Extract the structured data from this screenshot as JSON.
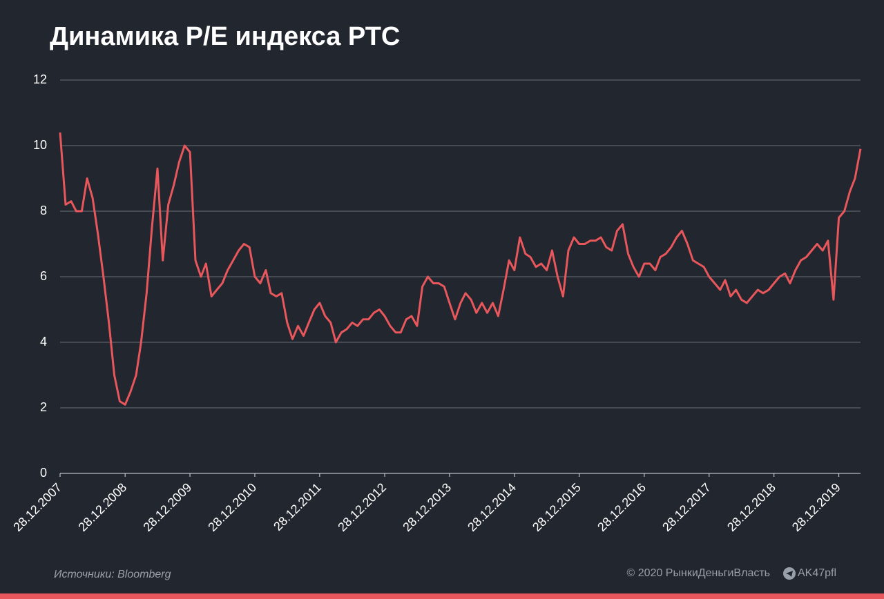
{
  "chart_data": {
    "type": "line",
    "title": "Динамика P/E  индекса РТС",
    "source": "Источники: Bloomberg",
    "copyright": "© 2020  РынкиДеньгиВласть",
    "channel": "AK47pfl",
    "color": "#e8575c",
    "grid": true,
    "ylim": [
      0,
      12
    ],
    "yticks": [
      0,
      2,
      4,
      6,
      8,
      10,
      12
    ],
    "xlim": [
      "28.12.2007",
      "28.04.2020"
    ],
    "xticks": [
      "28.12.2007",
      "28.12.2008",
      "28.12.2009",
      "28.12.2010",
      "28.12.2011",
      "28.12.2012",
      "28.12.2013",
      "28.12.2014",
      "28.12.2015",
      "28.12.2016",
      "28.12.2017",
      "28.12.2018",
      "28.12.2019"
    ],
    "x": [
      "28.12.2007",
      "28.01.2008",
      "28.02.2008",
      "28.03.2008",
      "28.04.2008",
      "28.05.2008",
      "28.06.2008",
      "28.07.2008",
      "28.08.2008",
      "28.09.2008",
      "28.10.2008",
      "28.11.2008",
      "28.12.2008",
      "28.01.2009",
      "28.02.2009",
      "28.03.2009",
      "28.04.2009",
      "28.05.2009",
      "28.06.2009",
      "28.07.2009",
      "28.08.2009",
      "28.09.2009",
      "28.10.2009",
      "28.11.2009",
      "28.12.2009",
      "28.01.2010",
      "28.02.2010",
      "28.03.2010",
      "28.04.2010",
      "28.05.2010",
      "28.06.2010",
      "28.07.2010",
      "28.08.2010",
      "28.09.2010",
      "28.10.2010",
      "28.11.2010",
      "28.12.2010",
      "28.01.2011",
      "28.02.2011",
      "28.03.2011",
      "28.04.2011",
      "28.05.2011",
      "28.06.2011",
      "28.07.2011",
      "28.08.2011",
      "28.09.2011",
      "28.10.2011",
      "28.11.2011",
      "28.12.2011",
      "28.01.2012",
      "28.02.2012",
      "28.03.2012",
      "28.04.2012",
      "28.05.2012",
      "28.06.2012",
      "28.07.2012",
      "28.08.2012",
      "28.09.2012",
      "28.10.2012",
      "28.11.2012",
      "28.12.2012",
      "28.01.2013",
      "28.02.2013",
      "28.03.2013",
      "28.04.2013",
      "28.05.2013",
      "28.06.2013",
      "28.07.2013",
      "28.08.2013",
      "28.09.2013",
      "28.10.2013",
      "28.11.2013",
      "28.12.2013",
      "28.01.2014",
      "28.02.2014",
      "28.03.2014",
      "28.04.2014",
      "28.05.2014",
      "28.06.2014",
      "28.07.2014",
      "28.08.2014",
      "28.09.2014",
      "28.10.2014",
      "28.11.2014",
      "28.12.2014",
      "28.01.2015",
      "28.02.2015",
      "28.03.2015",
      "28.04.2015",
      "28.05.2015",
      "28.06.2015",
      "28.07.2015",
      "28.08.2015",
      "28.09.2015",
      "28.10.2015",
      "28.11.2015",
      "28.12.2015",
      "28.01.2016",
      "28.02.2016",
      "28.03.2016",
      "28.04.2016",
      "28.05.2016",
      "28.06.2016",
      "28.07.2016",
      "28.08.2016",
      "28.09.2016",
      "28.10.2016",
      "28.11.2016",
      "28.12.2016",
      "28.01.2017",
      "28.02.2017",
      "28.03.2017",
      "28.04.2017",
      "28.05.2017",
      "28.06.2017",
      "28.07.2017",
      "28.08.2017",
      "28.09.2017",
      "28.10.2017",
      "28.11.2017",
      "28.12.2017",
      "28.01.2018",
      "28.02.2018",
      "28.03.2018",
      "28.04.2018",
      "28.05.2018",
      "28.06.2018",
      "28.07.2018",
      "28.08.2018",
      "28.09.2018",
      "28.10.2018",
      "28.11.2018",
      "28.12.2018",
      "28.01.2019",
      "28.02.2019",
      "28.03.2019",
      "28.04.2019",
      "28.05.2019",
      "28.06.2019",
      "28.07.2019",
      "28.08.2019",
      "28.09.2019",
      "28.10.2019",
      "28.11.2019",
      "28.12.2019",
      "28.01.2020",
      "28.02.2020",
      "28.03.2020",
      "28.04.2020"
    ],
    "values": [
      10.4,
      8.2,
      8.3,
      8.0,
      8.0,
      9.0,
      8.4,
      7.3,
      6.0,
      4.6,
      3.0,
      2.2,
      2.1,
      2.5,
      3.0,
      4.0,
      5.5,
      7.5,
      9.3,
      6.5,
      8.2,
      8.8,
      9.5,
      10.0,
      9.8,
      6.5,
      6.0,
      6.4,
      5.4,
      5.6,
      5.8,
      6.2,
      6.5,
      6.8,
      7.0,
      6.9,
      6.0,
      5.8,
      6.2,
      5.5,
      5.4,
      5.5,
      4.6,
      4.1,
      4.5,
      4.2,
      4.6,
      5.0,
      5.2,
      4.8,
      4.6,
      4.0,
      4.3,
      4.4,
      4.6,
      4.5,
      4.7,
      4.7,
      4.9,
      5.0,
      4.8,
      4.5,
      4.3,
      4.3,
      4.7,
      4.8,
      4.5,
      5.7,
      6.0,
      5.8,
      5.8,
      5.7,
      5.2,
      4.7,
      5.2,
      5.5,
      5.3,
      4.9,
      5.2,
      4.9,
      5.2,
      4.8,
      5.6,
      6.5,
      6.2,
      7.2,
      6.7,
      6.6,
      6.3,
      6.4,
      6.2,
      6.8,
      6.0,
      5.4,
      6.8,
      7.2,
      7.0,
      7.0,
      7.1,
      7.1,
      7.2,
      6.9,
      6.8,
      7.4,
      7.6,
      6.7,
      6.3,
      6.0,
      6.4,
      6.4,
      6.2,
      6.6,
      6.7,
      6.9,
      7.2,
      7.4,
      7.0,
      6.5,
      6.4,
      6.3,
      6.0,
      5.8,
      5.6,
      5.9,
      5.4,
      5.6,
      5.3,
      5.2,
      5.4,
      5.6,
      5.5,
      5.6,
      5.8,
      6.0,
      6.1,
      5.8,
      6.2,
      6.5,
      6.6,
      6.8,
      7.0,
      6.8,
      7.1,
      5.3,
      7.8,
      8.0,
      8.6,
      9.0,
      9.9
    ]
  }
}
